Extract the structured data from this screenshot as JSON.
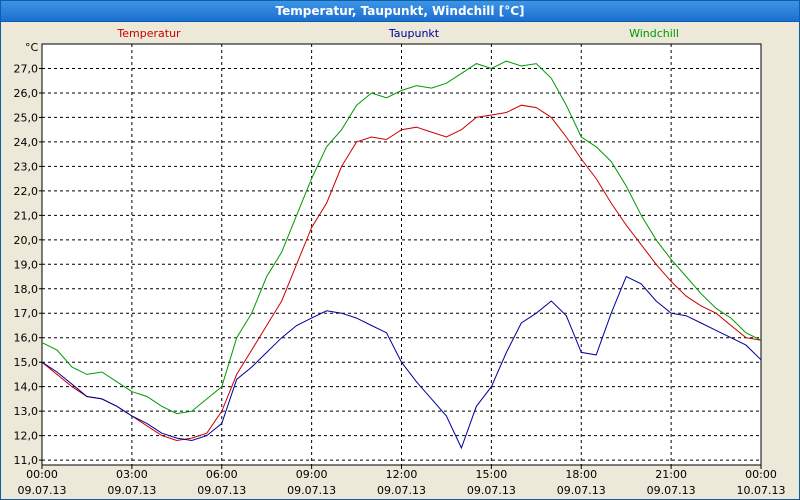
{
  "window": {
    "title": "Temperatur, Taupunkt, Windchill [°C]"
  },
  "chart_data": {
    "type": "line",
    "title": "Temperatur, Taupunkt, Windchill [°C]",
    "ylabel": "°C",
    "ylim": [
      10.8,
      28.0
    ],
    "y_ticks": [
      11.0,
      12.0,
      13.0,
      14.0,
      15.0,
      16.0,
      17.0,
      18.0,
      19.0,
      20.0,
      21.0,
      22.0,
      23.0,
      24.0,
      25.0,
      26.0,
      27.0
    ],
    "x_unit": "hours",
    "xlim": [
      0,
      24
    ],
    "x_ticks": [
      {
        "time": "00:00",
        "date": "09.07.13"
      },
      {
        "time": "03:00",
        "date": "09.07.13"
      },
      {
        "time": "06:00",
        "date": "09.07.13"
      },
      {
        "time": "09:00",
        "date": "09.07.13"
      },
      {
        "time": "12:00",
        "date": "09.07.13"
      },
      {
        "time": "15:00",
        "date": "09.07.13"
      },
      {
        "time": "18:00",
        "date": "09.07.13"
      },
      {
        "time": "21:00",
        "date": "09.07.13"
      },
      {
        "time": "00:00",
        "date": "10.07.13"
      }
    ],
    "grid": true,
    "series": [
      {
        "name": "Temperatur",
        "color": "#cc0000",
        "x": [
          0,
          0.5,
          1,
          1.5,
          2,
          2.5,
          3,
          3.5,
          4,
          4.5,
          5,
          5.5,
          6,
          6.5,
          7,
          7.5,
          8,
          8.5,
          9,
          9.5,
          10,
          10.5,
          11,
          11.5,
          12,
          12.5,
          13,
          13.5,
          14,
          14.5,
          15,
          15.5,
          16,
          16.5,
          17,
          17.5,
          18,
          18.5,
          19,
          19.5,
          20,
          20.5,
          21,
          21.5,
          22,
          22.5,
          23,
          23.5,
          24
        ],
        "values": [
          15.0,
          14.5,
          14.0,
          13.6,
          13.5,
          13.2,
          12.8,
          12.4,
          12.0,
          11.8,
          11.9,
          12.1,
          13.0,
          14.5,
          15.5,
          16.5,
          17.5,
          19.0,
          20.5,
          21.5,
          23.0,
          24.0,
          24.2,
          24.1,
          24.5,
          24.6,
          24.4,
          24.2,
          24.5,
          25.0,
          25.1,
          25.2,
          25.5,
          25.4,
          25.0,
          24.2,
          23.3,
          22.5,
          21.5,
          20.6,
          19.8,
          19.0,
          18.3,
          17.7,
          17.3,
          17.0,
          16.5,
          16.0,
          15.9
        ]
      },
      {
        "name": "Taupunkt",
        "color": "#000099",
        "x": [
          0,
          0.5,
          1,
          1.5,
          2,
          2.5,
          3,
          3.5,
          4,
          4.5,
          5,
          5.5,
          6,
          6.5,
          7,
          7.5,
          8,
          8.5,
          9,
          9.5,
          10,
          10.5,
          11,
          11.5,
          12,
          12.5,
          13,
          13.5,
          14,
          14.5,
          15,
          15.5,
          16,
          16.5,
          17,
          17.5,
          18,
          18.5,
          19,
          19.5,
          20,
          20.5,
          21,
          21.5,
          22,
          22.5,
          23,
          23.5,
          24
        ],
        "values": [
          15.0,
          14.6,
          14.1,
          13.6,
          13.5,
          13.2,
          12.8,
          12.5,
          12.1,
          11.9,
          11.8,
          12.0,
          12.5,
          14.3,
          14.8,
          15.4,
          16.0,
          16.5,
          16.8,
          17.1,
          17.0,
          16.8,
          16.5,
          16.2,
          15.0,
          14.2,
          13.5,
          12.8,
          11.5,
          13.2,
          14.0,
          15.4,
          16.6,
          17.0,
          17.5,
          16.9,
          15.4,
          15.3,
          17.0,
          18.5,
          18.2,
          17.5,
          17.0,
          16.9,
          16.6,
          16.3,
          16.0,
          15.7,
          15.1
        ]
      },
      {
        "name": "Windchill",
        "color": "#009900",
        "x": [
          0,
          0.5,
          1,
          1.5,
          2,
          2.5,
          3,
          3.5,
          4,
          4.5,
          5,
          5.5,
          6,
          6.5,
          7,
          7.5,
          8,
          8.5,
          9,
          9.5,
          10,
          10.5,
          11,
          11.5,
          12,
          12.5,
          13,
          13.5,
          14,
          14.5,
          15,
          15.5,
          16,
          16.5,
          17,
          17.5,
          18,
          18.5,
          19,
          19.5,
          20,
          20.5,
          21,
          21.5,
          22,
          22.5,
          23,
          23.5,
          24
        ],
        "values": [
          15.8,
          15.5,
          14.8,
          14.5,
          14.6,
          14.2,
          13.8,
          13.6,
          13.2,
          12.9,
          13.0,
          13.5,
          14.0,
          16.0,
          17.0,
          18.5,
          19.5,
          21.0,
          22.5,
          23.8,
          24.5,
          25.5,
          26.0,
          25.8,
          26.1,
          26.3,
          26.2,
          26.4,
          26.8,
          27.2,
          27.0,
          27.3,
          27.1,
          27.2,
          26.6,
          25.5,
          24.2,
          23.8,
          23.2,
          22.2,
          21.0,
          20.0,
          19.2,
          18.5,
          17.8,
          17.2,
          16.8,
          16.2,
          15.9
        ]
      }
    ],
    "legend": {
      "placement": "top",
      "entries": [
        "Temperatur",
        "Taupunkt",
        "Windchill"
      ]
    }
  }
}
